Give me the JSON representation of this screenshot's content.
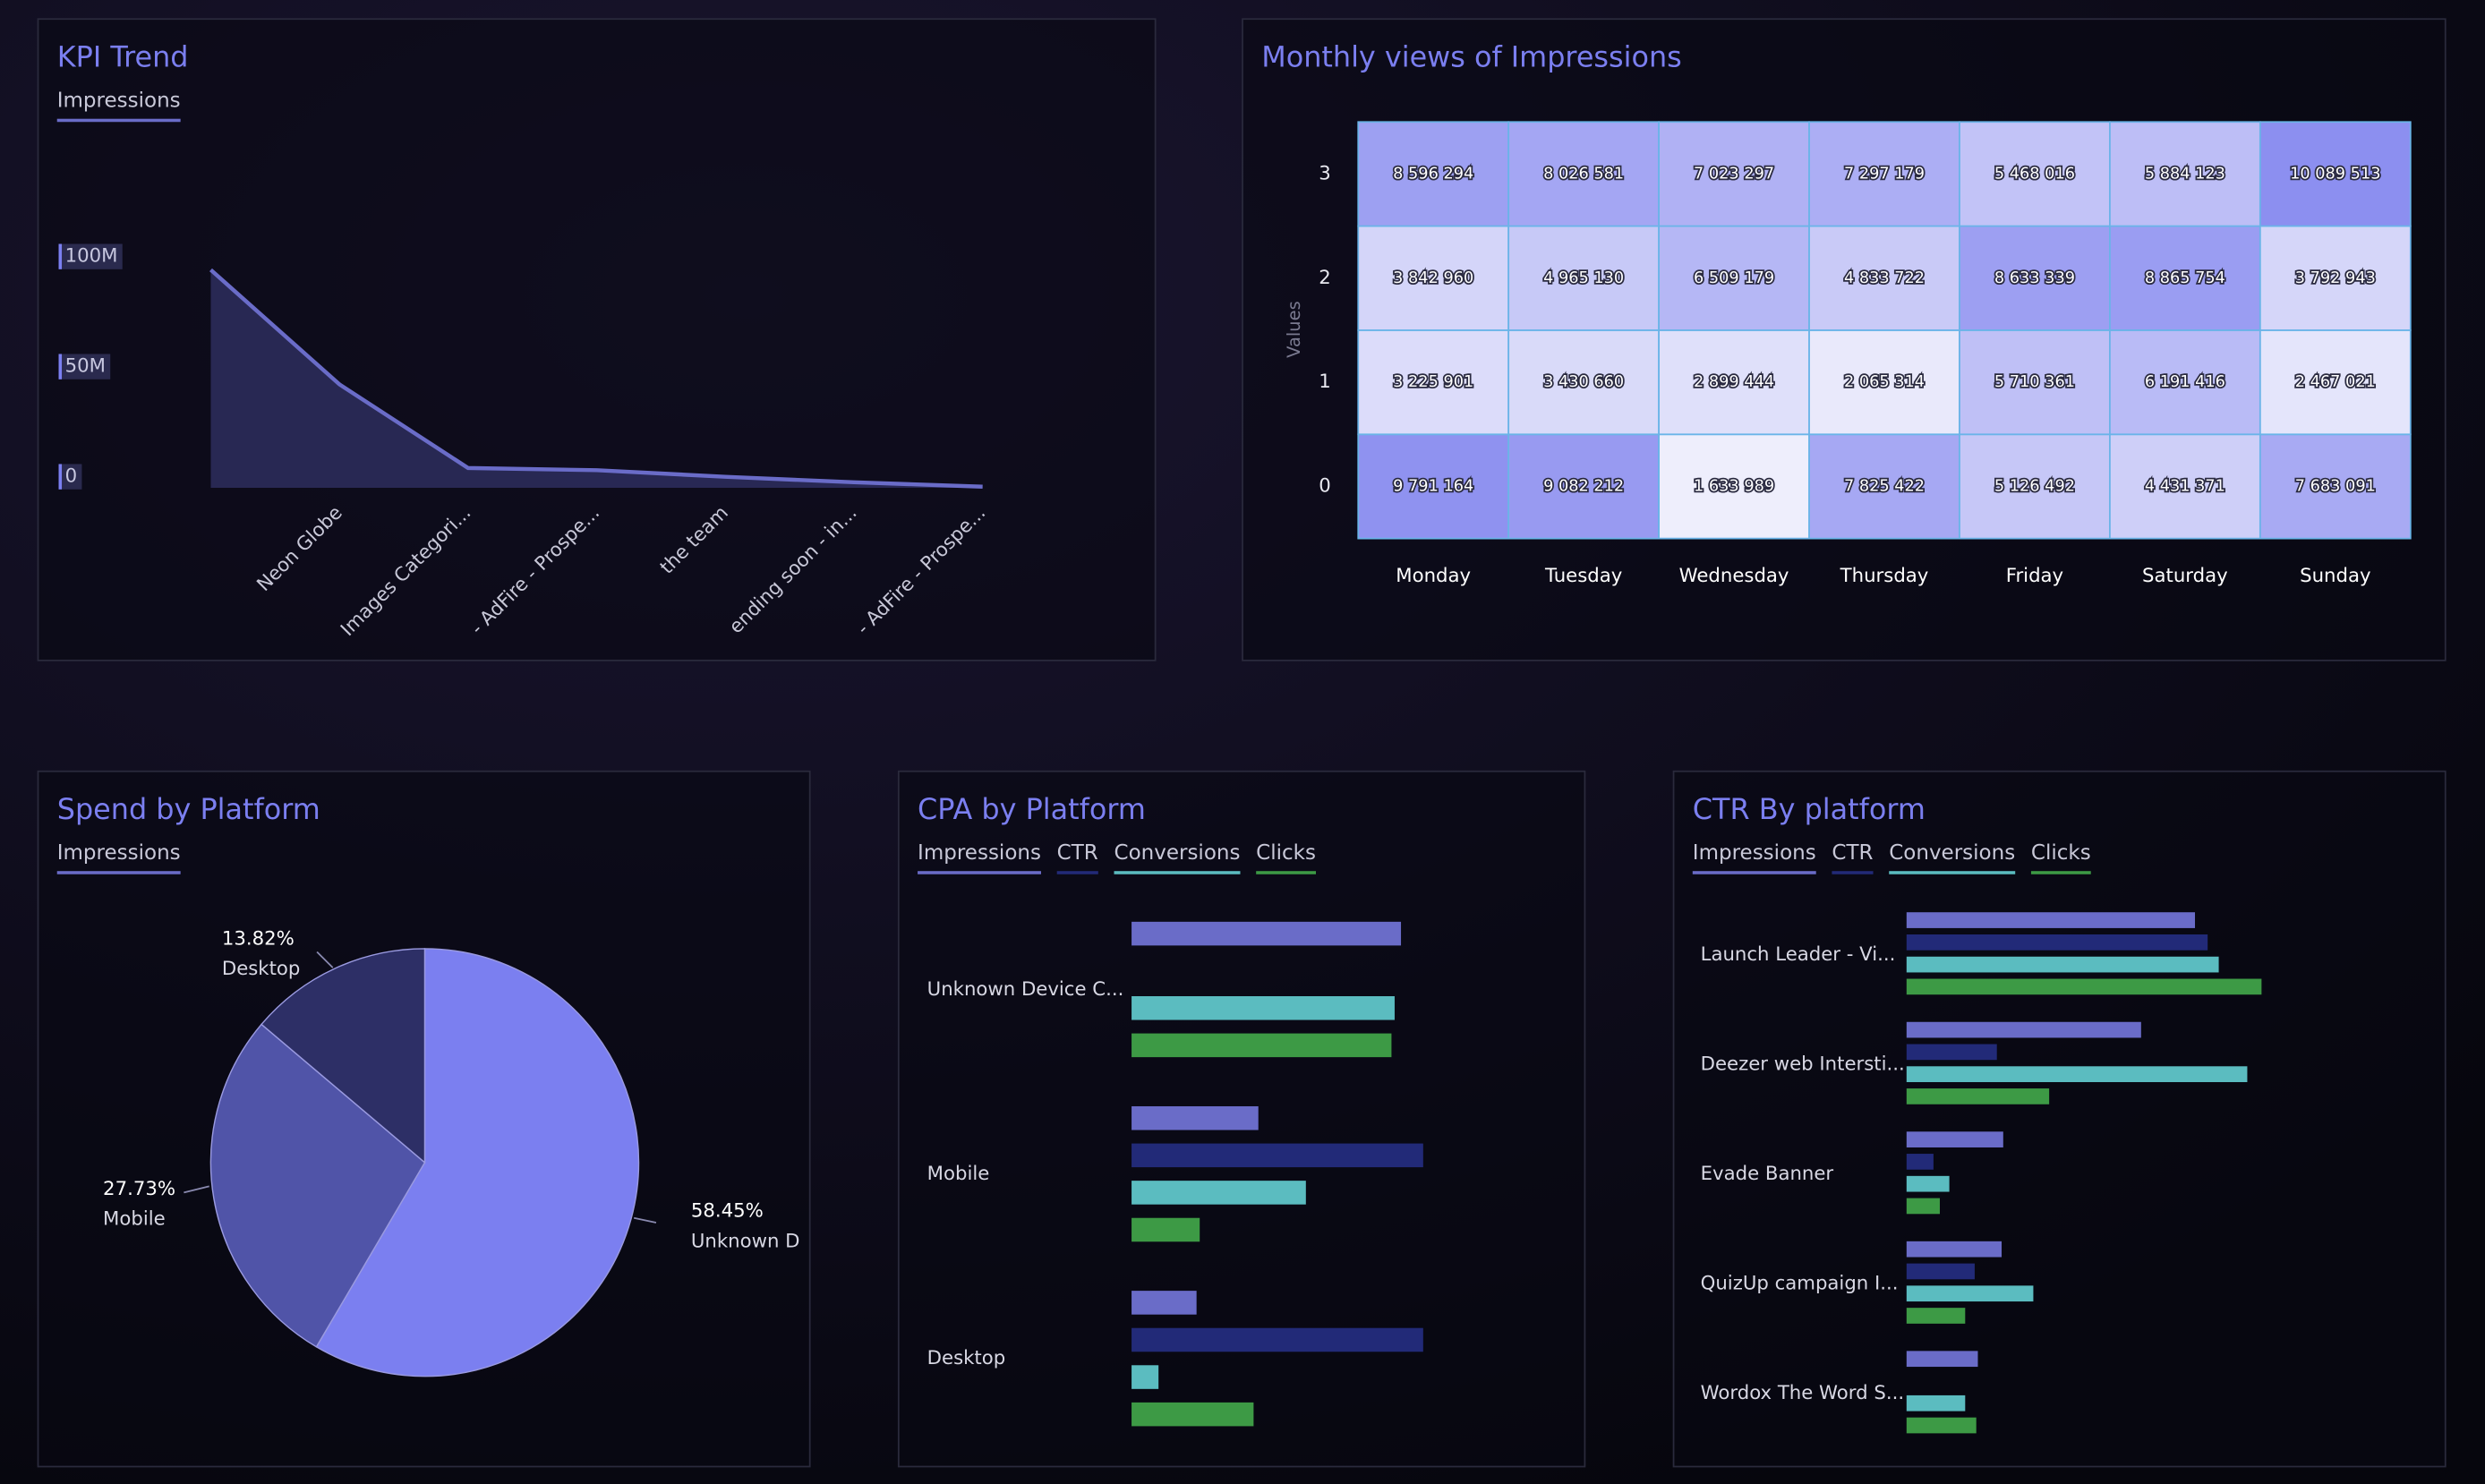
{
  "chart_data": [
    {
      "type": "area",
      "title": "KPI Trend",
      "categories": [
        null,
        "Neon Globe",
        "Images Categori...",
        "- AdFire - Prospe...",
        "the team",
        "ending soon - in...",
        "- AdFire - Prospe..."
      ],
      "series": [
        {
          "name": "Impressions",
          "color": "#6a6cc8",
          "values": [
            99000000,
            47000000,
            9000000,
            8000000,
            5000000,
            2500000,
            500000
          ]
        }
      ],
      "ylim": [
        0,
        100000000
      ],
      "yticks": [
        0,
        {
          "value": 50000000,
          "label": "50M"
        },
        {
          "value": 100000000,
          "label": "100M"
        }
      ]
    },
    {
      "type": "heatmap",
      "title": "Monthly views of Impressions",
      "y_label": "Values",
      "categories": [
        "Monday",
        "Tuesday",
        "Wednesday",
        "Thursday",
        "Friday",
        "Saturday",
        "Sunday"
      ],
      "y_categories": [
        "0",
        "1",
        "2",
        "3"
      ],
      "values": [
        [
          9791164,
          9082212,
          1633989,
          7825422,
          5126492,
          4431371,
          7683091
        ],
        [
          3225901,
          3430660,
          2899444,
          2065314,
          5710361,
          6191416,
          2467021
        ],
        [
          3842960,
          4965130,
          6509179,
          4833722,
          8633339,
          8865754,
          3792943
        ],
        [
          8596294,
          8026581,
          7023297,
          7297179,
          5468016,
          5884123,
          10089513
        ]
      ],
      "value_labels": [
        [
          "9 791 164",
          "9 082 212",
          "1 633 989",
          "7 825 422",
          "5 126 492",
          "4 431 371",
          "7 683 091"
        ],
        [
          "3 225 901",
          "3 430 660",
          "2 899 444",
          "2 065 314",
          "5 710 361",
          "6 191 416",
          "2 467 021"
        ],
        [
          "3 842 960",
          "4 965 130",
          "6 509 179",
          "4 833 722",
          "8 633 339",
          "8 865 754",
          "3 792 943"
        ],
        [
          "8 596 294",
          "8 026 581",
          "7 023 297",
          "7 297 179",
          "5 468 016",
          "5 884 123",
          "10 089 513"
        ]
      ],
      "color_range": [
        "#eeeefc",
        "#8c8ff0"
      ]
    },
    {
      "type": "pie",
      "title": "Spend by Platform",
      "metric": "Impressions",
      "categories": [
        "Unknown D",
        "Mobile",
        "Desktop"
      ],
      "values": [
        58.45,
        27.73,
        13.82
      ],
      "value_labels": [
        "58.45%",
        "27.73%",
        "13.82%"
      ],
      "colors": [
        "#7b7ff0",
        "#5054a8",
        "#2d2f66"
      ]
    },
    {
      "type": "hbar",
      "title": "CPA by Platform",
      "categories": [
        "Unknown Device C...",
        "Mobile",
        "Desktop"
      ],
      "series": [
        {
          "name": "Impressions",
          "color": "#6a6cc8",
          "values": [
            85,
            40,
            20.5
          ]
        },
        {
          "name": "CTR",
          "color": "#222a78",
          "values": [
            0,
            92,
            92
          ]
        },
        {
          "name": "Conversions",
          "color": "#5bbcc0",
          "values": [
            83,
            55,
            8.5
          ]
        },
        {
          "name": "Clicks",
          "color": "#3d9a45",
          "values": [
            82,
            21.5,
            38.5
          ]
        }
      ],
      "xlim": [
        0,
        100
      ]
    },
    {
      "type": "hbar",
      "title": "CTR By platform",
      "categories": [
        "Launch Leader - Vi...",
        "Deezer web Intersti...",
        "Evade Banner",
        "QuizUp campaign I...",
        "Wordox The Word S..."
      ],
      "series": [
        {
          "name": "Impressions",
          "color": "#6a6cc8",
          "values": [
            91,
            74,
            30.5,
            30,
            22.5
          ]
        },
        {
          "name": "CTR",
          "color": "#222a78",
          "values": [
            95,
            28.5,
            8.5,
            21.5,
            0
          ]
        },
        {
          "name": "Conversions",
          "color": "#5bbcc0",
          "values": [
            98.5,
            107.5,
            13.5,
            40,
            18.5
          ]
        },
        {
          "name": "Clicks",
          "color": "#3d9a45",
          "values": [
            112,
            45,
            10.5,
            18.5,
            22
          ]
        }
      ],
      "xlim": [
        0,
        120
      ]
    }
  ]
}
